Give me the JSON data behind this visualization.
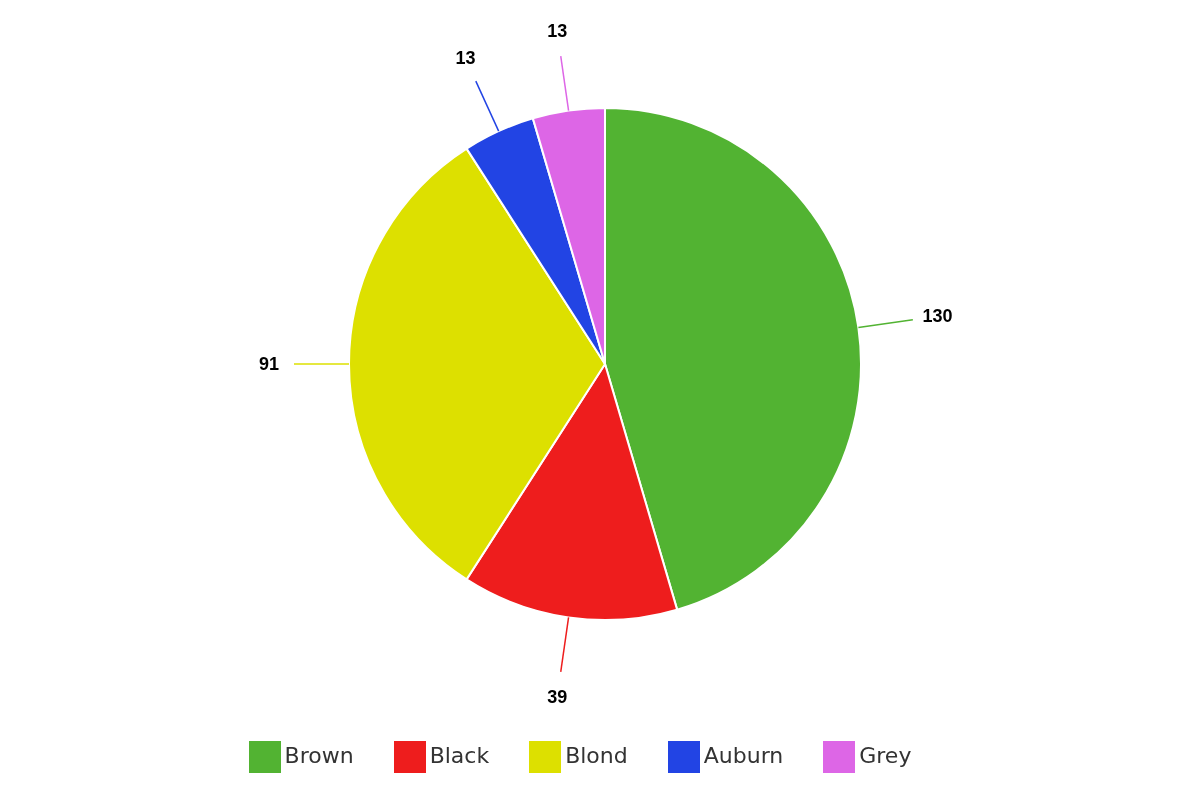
{
  "chart_data": {
    "type": "pie",
    "categories": [
      "Brown",
      "Black",
      "Blond",
      "Auburn",
      "Grey"
    ],
    "values": [
      130,
      39,
      91,
      13,
      13
    ],
    "colors": [
      "#52b332",
      "#ee1d1d",
      "#dde000",
      "#2244e4",
      "#dd66e6"
    ],
    "data_labels": true,
    "legend": "bottom"
  }
}
